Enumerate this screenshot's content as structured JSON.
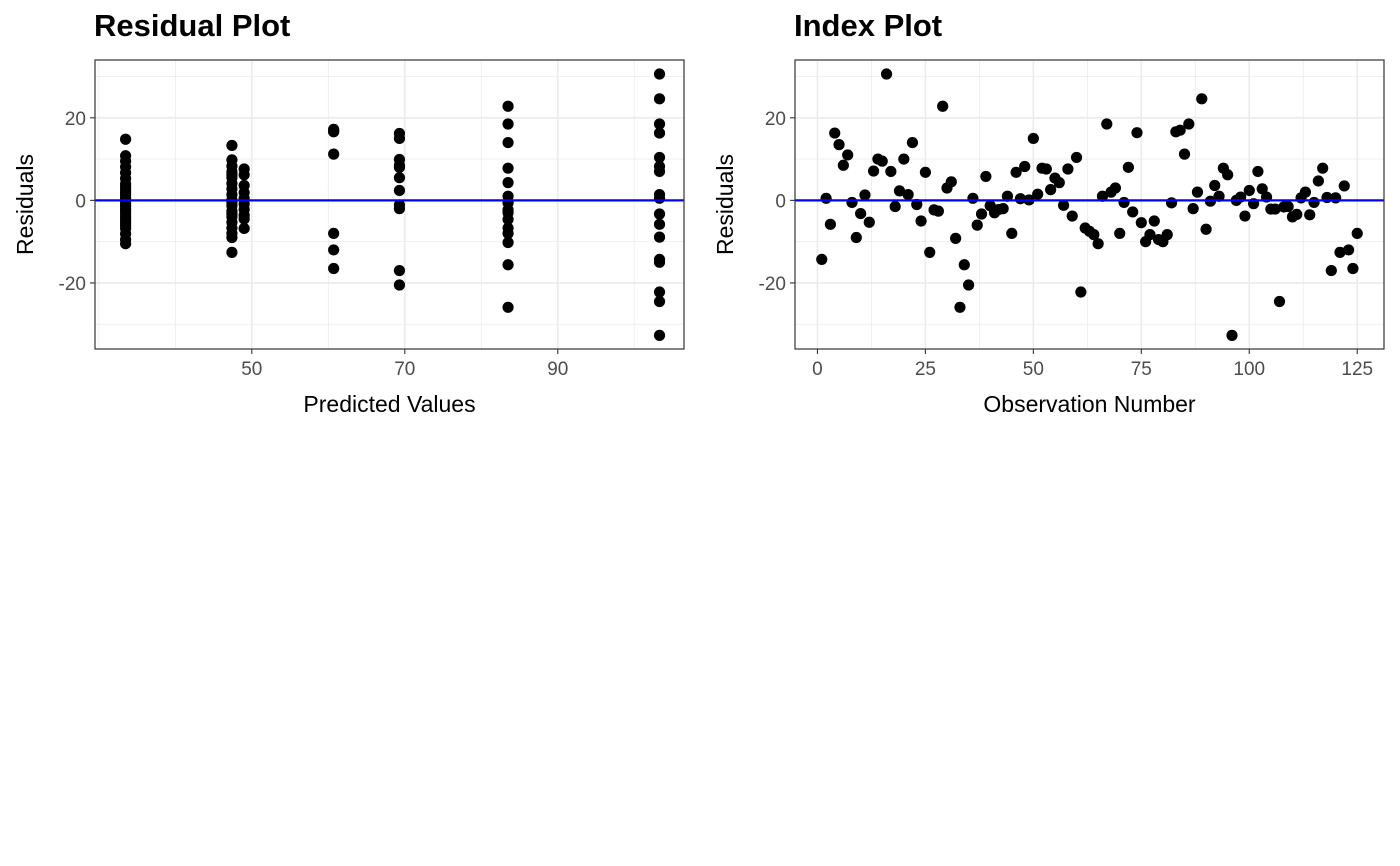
{
  "charts": {
    "chart_data": [
      {
        "type": "scatter",
        "title": "Residual Plot",
        "xlabel": "Predicted Values",
        "ylabel": "Residuals",
        "xlim": [
          29.5,
          106.5
        ],
        "ylim": [
          -36,
          34
        ],
        "xticks": [
          50,
          70,
          90
        ],
        "yticks": [
          -20,
          0,
          20
        ],
        "grid": true,
        "reference_line": {
          "y": 0,
          "color": "#0000ff"
        },
        "point_color": "#000000",
        "x": [
          33.5,
          33.5,
          33.5,
          33.5,
          33.5,
          33.5,
          33.5,
          33.5,
          33.5,
          33.5,
          33.5,
          33.5,
          33.5,
          33.5,
          33.5,
          33.5,
          33.5,
          33.5,
          33.5,
          33.5,
          33.5,
          33.5,
          33.5,
          33.5,
          33.5,
          33.5,
          47.4,
          47.4,
          47.4,
          47.4,
          47.4,
          47.4,
          47.4,
          47.4,
          47.4,
          47.4,
          47.4,
          47.4,
          47.4,
          47.4,
          47.4,
          47.4,
          47.4,
          47.4,
          47.4,
          47.4,
          49.0,
          49.0,
          49.0,
          49.0,
          49.0,
          49.0,
          49.0,
          49.0,
          49.0,
          49.0,
          60.7,
          60.7,
          60.7,
          60.7,
          60.7,
          60.7,
          60.7,
          69.3,
          69.3,
          69.3,
          69.3,
          69.3,
          69.3,
          69.3,
          69.3,
          69.3,
          69.3,
          69.3,
          83.5,
          83.5,
          83.5,
          83.5,
          83.5,
          83.5,
          83.5,
          83.5,
          83.5,
          83.5,
          83.5,
          83.5,
          83.5,
          83.5,
          83.5,
          103.3,
          103.3,
          103.3,
          103.3,
          103.3,
          103.3,
          103.3,
          103.3,
          103.3,
          103.3,
          103.3,
          103.3,
          103.3,
          103.3,
          103.3,
          103.3,
          103.3
        ],
        "y": [
          14.8,
          10.8,
          9.5,
          8.1,
          6.7,
          5.3,
          4.0,
          2.6,
          1.3,
          0.0,
          -1.4,
          -2.7,
          -4.1,
          -5.4,
          -6.8,
          -8.1,
          -9.5,
          -10.5,
          3.3,
          1.9,
          0.6,
          -0.8,
          -2.1,
          -3.4,
          -4.8,
          -6.1,
          13.3,
          9.8,
          8.3,
          6.9,
          5.5,
          4.1,
          2.8,
          1.4,
          0.1,
          -1.3,
          -2.6,
          -4.0,
          -5.3,
          -6.7,
          -8.0,
          -12.6,
          6.2,
          -0.5,
          -3.3,
          -9.0,
          7.6,
          6.2,
          1.9,
          0.5,
          -0.9,
          -2.2,
          -3.6,
          -6.8,
          3.6,
          -4.5,
          17.2,
          16.6,
          11.2,
          -8.0,
          -12.0,
          -16.5,
          16.8,
          16.2,
          9.9,
          8.5,
          5.5,
          2.4,
          -1.1,
          -2.0,
          -17.0,
          -20.5,
          15.0,
          8.0,
          22.8,
          18.5,
          14.0,
          7.8,
          4.3,
          1.0,
          -2.3,
          -4.6,
          -6.7,
          -10.2,
          -15.6,
          -25.9,
          -0.6,
          -3.0,
          -8.0,
          30.6,
          24.6,
          18.5,
          16.3,
          10.4,
          8.2,
          1.4,
          0.5,
          -3.3,
          -5.8,
          -8.9,
          -14.3,
          -22.2,
          -24.5,
          -32.7,
          7.0,
          -15.0
        ]
      },
      {
        "type": "scatter",
        "title": "Index Plot",
        "xlabel": "Observation Number",
        "ylabel": "Residuals",
        "xlim": [
          -5.2,
          131.2
        ],
        "ylim": [
          -36,
          34
        ],
        "xticks": [
          0,
          25,
          50,
          75,
          100,
          125
        ],
        "yticks": [
          -20,
          0,
          20
        ],
        "grid": true,
        "reference_line": {
          "y": 0,
          "color": "#0000ff"
        },
        "point_color": "#000000",
        "x": [
          1,
          2,
          3,
          4,
          5,
          6,
          7,
          8,
          9,
          10,
          11,
          12,
          13,
          14,
          15,
          16,
          17,
          18,
          19,
          20,
          21,
          22,
          23,
          24,
          25,
          26,
          27,
          28,
          29,
          30,
          31,
          32,
          33,
          34,
          35,
          36,
          37,
          38,
          39,
          40,
          41,
          42,
          43,
          44,
          45,
          46,
          47,
          48,
          49,
          50,
          51,
          52,
          53,
          54,
          55,
          56,
          57,
          58,
          59,
          60,
          61,
          62,
          63,
          64,
          65,
          66,
          67,
          68,
          69,
          70,
          71,
          72,
          73,
          74,
          75,
          76,
          77,
          78,
          79,
          80,
          81,
          82,
          83,
          84,
          85,
          86,
          87,
          88,
          89,
          90,
          91,
          92,
          93,
          94,
          95,
          96,
          97,
          98,
          99,
          100,
          101,
          102,
          103,
          104,
          105,
          106,
          107,
          108,
          109,
          110,
          111,
          112,
          113,
          114,
          115,
          116,
          117,
          118,
          119,
          120,
          121,
          122,
          123,
          124,
          125
        ],
        "y": [
          -14.3,
          0.5,
          -5.8,
          16.3,
          13.5,
          8.5,
          11.0,
          -0.5,
          -9.0,
          -3.2,
          1.3,
          -5.3,
          7.1,
          10.0,
          9.5,
          30.6,
          7.0,
          -1.5,
          2.3,
          10.0,
          1.4,
          14.0,
          -1.0,
          -5.0,
          6.8,
          -12.6,
          -2.3,
          -2.6,
          22.8,
          3.0,
          4.5,
          -9.2,
          -25.9,
          -15.6,
          -20.5,
          0.5,
          -6.0,
          -3.3,
          5.8,
          -1.3,
          -3.0,
          -2.2,
          -2.0,
          1.0,
          -8.0,
          6.8,
          0.4,
          8.2,
          0.1,
          15.0,
          1.5,
          7.8,
          7.6,
          2.6,
          5.4,
          4.3,
          -1.2,
          7.6,
          -3.8,
          10.4,
          -22.2,
          -6.7,
          -7.5,
          -8.3,
          -10.5,
          1.0,
          18.5,
          2.0,
          3.0,
          -8.0,
          -0.5,
          8.0,
          -2.8,
          16.4,
          -5.4,
          -10.0,
          -8.3,
          -5.0,
          -9.5,
          -10.0,
          -8.3,
          -0.6,
          16.6,
          17.0,
          11.2,
          18.5,
          -2.0,
          2.0,
          24.6,
          -7.0,
          -0.2,
          3.6,
          1.0,
          7.8,
          6.2,
          -32.7,
          0.0,
          0.8,
          -3.8,
          2.4,
          -0.8,
          7.0,
          2.8,
          0.8,
          -2.1,
          -2.1,
          -24.5,
          -1.6,
          -1.5,
          -4.0,
          -3.4,
          0.6,
          2.0,
          -3.5,
          -0.5,
          4.7,
          7.8,
          0.7,
          -17.0,
          0.6,
          -12.6,
          3.5,
          -12.0,
          -16.5,
          -8.0
        ]
      }
    ]
  }
}
